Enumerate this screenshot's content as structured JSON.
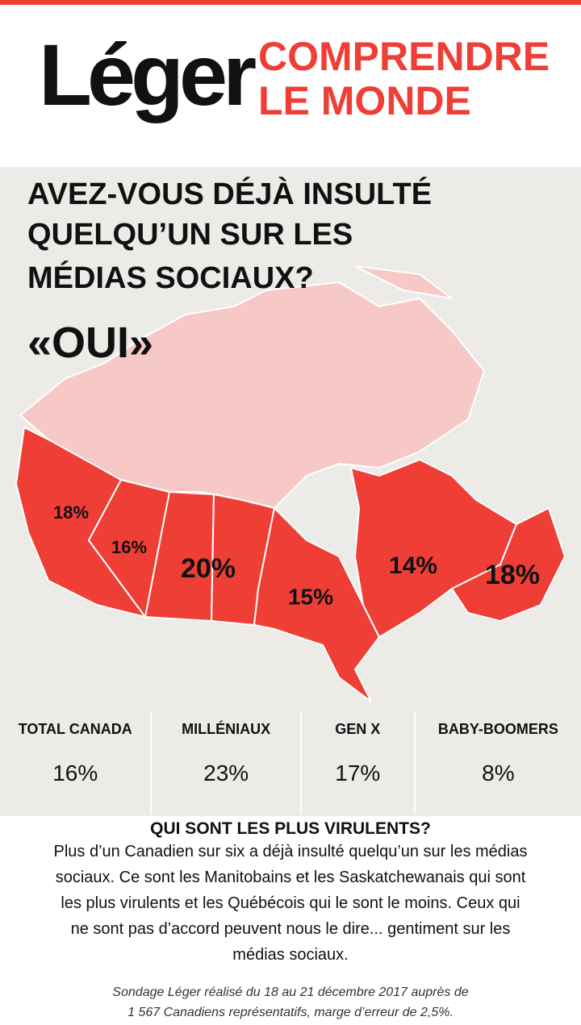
{
  "header": {
    "logo": "Léger",
    "slogan": [
      "COMPRENDRE",
      "LE MONDE"
    ]
  },
  "question": {
    "lines": [
      "AVEZ-VOUS DÉJÀ INSULTÉ",
      "QUELQU’UN SUR LES",
      "MÉDIAS SOCIAUX?"
    ],
    "answer": "«OUI»"
  },
  "map": {
    "regions": [
      {
        "name": "British Columbia",
        "label": "18%"
      },
      {
        "name": "Alberta",
        "label": "16%"
      },
      {
        "name": "Saskatchewan and Manitoba",
        "label": "20%"
      },
      {
        "name": "Ontario",
        "label": "15%"
      },
      {
        "name": "Quebec",
        "label": "14%"
      },
      {
        "name": "Atlantic",
        "label": "18%"
      }
    ]
  },
  "stats": [
    {
      "label": "TOTAL CANADA",
      "value": "16%"
    },
    {
      "label": "MILLÉNIAUX",
      "value": "23%"
    },
    {
      "label": "GEN X",
      "value": "17%"
    },
    {
      "label": "BABY-BOOMERS",
      "value": "8%"
    }
  ],
  "summary": {
    "heading": "QUI SONT LES PLUS VIRULENTS?",
    "lines": [
      "Plus d’un Canadien sur six a déjà insulté quelqu’un sur les médias",
      "sociaux. Ce sont les Manitobains et les Saskatchewanais qui sont",
      "les plus virulents et les Québécois qui le sont le moins. Ceux qui",
      "ne sont pas d’accord peuvent nous le dire... gentiment sur les",
      "médias sociaux."
    ]
  },
  "footnote": [
    "Sondage Léger réalisé du 18 au 21 décembre 2017 auprès de",
    "1 567 Canadiens représentatifs, marge d’erreur de 2,5%."
  ]
}
